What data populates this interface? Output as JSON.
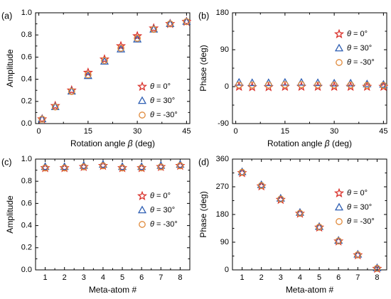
{
  "legend_labels": [
    "θ = 0°",
    "θ = 30°",
    "θ = -30°"
  ],
  "markers": [
    {
      "shape": "star",
      "color": "#d9312b"
    },
    {
      "shape": "triangle",
      "color": "#2f5fb3"
    },
    {
      "shape": "circle",
      "color": "#e08a3c"
    }
  ],
  "chart_data": [
    {
      "panel": "(a)",
      "type": "scatter",
      "xlabel": "Rotation angle",
      "xlabel_symbol": "β",
      "xlabel_unit": "(deg)",
      "ylabel": "Amplitude",
      "xlim": [
        -1,
        46
      ],
      "ylim": [
        0,
        1.0
      ],
      "xticks": [
        0,
        15,
        30,
        45
      ],
      "xticklabels": [
        "0",
        "15",
        "30",
        "45"
      ],
      "yticks": [
        0,
        0.2,
        0.4,
        0.6,
        0.8,
        1.0
      ],
      "yticklabels": [
        "0.0",
        "0.2",
        "0.4",
        "0.6",
        "0.8",
        "1.0"
      ],
      "legend_position": "bottom-right",
      "x": [
        1,
        5,
        10,
        15,
        20,
        25,
        30,
        35,
        40,
        45
      ],
      "series": [
        {
          "name": "θ = 0°",
          "values": [
            0.04,
            0.16,
            0.3,
            0.46,
            0.58,
            0.7,
            0.79,
            0.86,
            0.9,
            0.92
          ]
        },
        {
          "name": "θ = 30°",
          "values": [
            0.04,
            0.15,
            0.29,
            0.43,
            0.56,
            0.67,
            0.76,
            0.85,
            0.9,
            0.92
          ]
        },
        {
          "name": "θ = -30°",
          "values": [
            0.04,
            0.15,
            0.29,
            0.44,
            0.57,
            0.68,
            0.77,
            0.85,
            0.9,
            0.92
          ]
        }
      ]
    },
    {
      "panel": "(b)",
      "type": "scatter",
      "xlabel": "Rotation angle",
      "xlabel_symbol": "β",
      "xlabel_unit": "(deg)",
      "ylabel": "Phase (deg)",
      "xlim": [
        -1,
        46
      ],
      "ylim": [
        -90,
        180
      ],
      "xticks": [
        0,
        15,
        30,
        45
      ],
      "xticklabels": [
        "0",
        "15",
        "30",
        "45"
      ],
      "yticks": [
        -90,
        0,
        90,
        180
      ],
      "yticklabels": [
        "-90",
        "0",
        "90",
        "180"
      ],
      "legend_position": "top-right",
      "x": [
        1,
        5,
        10,
        15,
        20,
        25,
        30,
        35,
        40,
        45
      ],
      "series": [
        {
          "name": "θ = 0°",
          "values": [
            0,
            -1,
            -1,
            0,
            0,
            0,
            0,
            0,
            0,
            0
          ]
        },
        {
          "name": "θ = 30°",
          "values": [
            10,
            9,
            9,
            10,
            10,
            9,
            8,
            8,
            6,
            5
          ]
        },
        {
          "name": "θ = -30°",
          "values": [
            4,
            4,
            4,
            5,
            5,
            4,
            4,
            4,
            3,
            3
          ]
        }
      ]
    },
    {
      "panel": "(c)",
      "type": "scatter",
      "xlabel": "Meta-atom #",
      "ylabel": "Amplitude",
      "xlim": [
        0.5,
        8.5
      ],
      "ylim": [
        0,
        1.0
      ],
      "xticks": [
        1,
        2,
        3,
        4,
        5,
        6,
        7,
        8
      ],
      "xticklabels": [
        "1",
        "2",
        "3",
        "4",
        "5",
        "6",
        "7",
        "8"
      ],
      "yticks": [
        0,
        0.2,
        0.4,
        0.6,
        0.8,
        1.0
      ],
      "yticklabels": [
        "0.0",
        "0.2",
        "0.4",
        "0.6",
        "0.8",
        "1.0"
      ],
      "legend_position": "right",
      "x": [
        1,
        2,
        3,
        4,
        5,
        6,
        7,
        8
      ],
      "series": [
        {
          "name": "θ = 0°",
          "values": [
            0.92,
            0.92,
            0.93,
            0.94,
            0.92,
            0.92,
            0.93,
            0.94
          ]
        },
        {
          "name": "θ = 30°",
          "values": [
            0.93,
            0.93,
            0.94,
            0.95,
            0.93,
            0.93,
            0.94,
            0.95
          ]
        },
        {
          "name": "θ = -30°",
          "values": [
            0.92,
            0.92,
            0.93,
            0.94,
            0.92,
            0.92,
            0.93,
            0.94
          ]
        }
      ]
    },
    {
      "panel": "(d)",
      "type": "scatter",
      "xlabel": "Meta-atom #",
      "ylabel": "Phase (deg)",
      "xlim": [
        0.5,
        8.5
      ],
      "ylim": [
        0,
        360
      ],
      "xticks": [
        1,
        2,
        3,
        4,
        5,
        6,
        7,
        8
      ],
      "xticklabels": [
        "1",
        "2",
        "3",
        "4",
        "5",
        "6",
        "7",
        "8"
      ],
      "yticks": [
        0,
        90,
        180,
        270,
        360
      ],
      "yticklabels": [
        "0",
        "90",
        "180",
        "270",
        "360"
      ],
      "legend_position": "top-right",
      "x": [
        1,
        2,
        3,
        4,
        5,
        6,
        7,
        8
      ],
      "series": [
        {
          "name": "θ = 0°",
          "values": [
            315,
            272,
            228,
            183,
            138,
            93,
            48,
            4
          ]
        },
        {
          "name": "θ = 30°",
          "values": [
            318,
            276,
            232,
            186,
            140,
            95,
            50,
            6
          ]
        },
        {
          "name": "θ = -30°",
          "values": [
            317,
            274,
            230,
            184,
            139,
            94,
            49,
            5
          ]
        }
      ]
    }
  ]
}
